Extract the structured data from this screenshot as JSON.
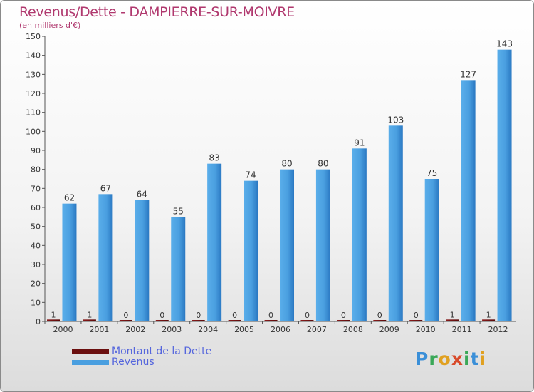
{
  "header": {
    "title": "Revenus/Dette - DAMPIERRE-SUR-MOIVRE",
    "subtitle": "(en milliers d'€)"
  },
  "colors": {
    "revenus": "#4a9fe0",
    "revenus_dark": "#2a78c2",
    "dette": "#7a1010",
    "title": "#b0386e",
    "legend_text": "#5566dd"
  },
  "chart_data": {
    "type": "bar",
    "title": "Revenus/Dette - DAMPIERRE-SUR-MOIVRE",
    "ylabel": "(en milliers d'€)",
    "xlabel": "",
    "ylim": [
      0,
      150
    ],
    "ytick_step": 10,
    "grid": false,
    "legend": "bottom-left",
    "categories": [
      "2000",
      "2001",
      "2002",
      "2003",
      "2004",
      "2005",
      "2006",
      "2007",
      "2008",
      "2009",
      "2010",
      "2011",
      "2012"
    ],
    "series": [
      {
        "name": "Montant de la Dette",
        "values": [
          1,
          1,
          0,
          0,
          0,
          0,
          0,
          0,
          0,
          0,
          0,
          1,
          1
        ]
      },
      {
        "name": "Revenus",
        "values": [
          62,
          67,
          64,
          55,
          83,
          74,
          80,
          80,
          91,
          103,
          75,
          127,
          143
        ]
      }
    ]
  },
  "legend": {
    "items": [
      {
        "label": "Montant de la Dette",
        "color": "#6b0f0f"
      },
      {
        "label": "Revenus",
        "color": "#4a9fe0"
      }
    ]
  },
  "logo": {
    "letters": [
      {
        "ch": "P",
        "color": "#3a8fd8"
      },
      {
        "ch": "r",
        "color": "#3aa858"
      },
      {
        "ch": "o",
        "color": "#e0a020"
      },
      {
        "ch": "x",
        "color": "#d84a2a"
      },
      {
        "ch": "i",
        "color": "#3aa858"
      },
      {
        "ch": "t",
        "color": "#3a8fd8"
      },
      {
        "ch": "i",
        "color": "#e0a020"
      }
    ]
  }
}
